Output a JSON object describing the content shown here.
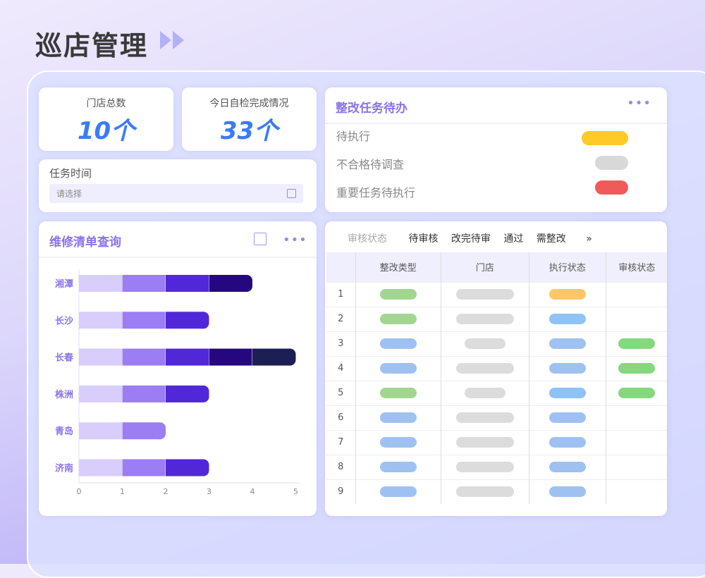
{
  "header": {
    "title": "巡店管理"
  },
  "stats": [
    {
      "label": "门店总数",
      "value": "10个"
    },
    {
      "label": "今日自检完成情况",
      "value": "33个"
    }
  ],
  "task_time": {
    "label": "任务时间",
    "placeholder": "请选择"
  },
  "todo": {
    "title": "整改任务待办",
    "items": [
      {
        "label": "待执行",
        "color": "#ffc928"
      },
      {
        "label": "不合格待调查",
        "color": "#d8d8d8"
      },
      {
        "label": "重要任务待执行",
        "color": "#f25a5a"
      }
    ]
  },
  "repair": {
    "title": "维修清单查询"
  },
  "chart_data": {
    "type": "bar",
    "orientation": "horizontal",
    "stacked": true,
    "categories": [
      "湘潭",
      "长沙",
      "长春",
      "株洲",
      "青岛",
      "济南"
    ],
    "series": [
      {
        "values": [
          1,
          1,
          1,
          1,
          1,
          1
        ],
        "color": "#d9cdfb"
      },
      {
        "values": [
          1,
          1,
          1,
          1,
          1,
          1
        ],
        "color": "#9b7df4"
      },
      {
        "values": [
          1,
          1,
          1,
          1,
          0,
          1
        ],
        "color": "#5128d8"
      },
      {
        "values": [
          1,
          0,
          1,
          0,
          0,
          0
        ],
        "color": "#25087f"
      },
      {
        "values": [
          0,
          0,
          1,
          0,
          0,
          0
        ],
        "color": "#1b1f54"
      }
    ],
    "xticks": [
      "0",
      "1",
      "2",
      "3",
      "4",
      "5"
    ],
    "xlim": [
      0,
      5
    ]
  },
  "audit": {
    "filter_label": "审核状态",
    "filters": [
      "待审核",
      "改完待审",
      "通过",
      "需整改"
    ],
    "more": "»",
    "columns": [
      "",
      "整改类型",
      "门店",
      "执行状态",
      "审核状态"
    ],
    "rows": [
      {
        "no": "1",
        "type": "#a2d690",
        "store": "long",
        "exec": "#fdc66a",
        "audit": ""
      },
      {
        "no": "2",
        "type": "#a2d690",
        "store": "long",
        "exec": "#8fc3f6",
        "audit": ""
      },
      {
        "no": "3",
        "type": "#9fc1f2",
        "store": "short",
        "exec": "#9fc1f2",
        "audit": "#86d87f"
      },
      {
        "no": "4",
        "type": "#9fc1f2",
        "store": "long",
        "exec": "#9fc1f2",
        "audit": "#86d87f"
      },
      {
        "no": "5",
        "type": "#a2d690",
        "store": "short",
        "exec": "#8fc3f6",
        "audit": "#86d87f"
      },
      {
        "no": "6",
        "type": "#9fc1f2",
        "store": "long",
        "exec": "#9fc1f2",
        "audit": ""
      },
      {
        "no": "7",
        "type": "#9fc1f2",
        "store": "long",
        "exec": "#9fc1f2",
        "audit": ""
      },
      {
        "no": "8",
        "type": "#9fc1f2",
        "store": "long",
        "exec": "#9fc1f2",
        "audit": ""
      },
      {
        "no": "9",
        "type": "#9fc1f2",
        "store": "long",
        "exec": "#9fc1f2",
        "audit": ""
      }
    ]
  }
}
